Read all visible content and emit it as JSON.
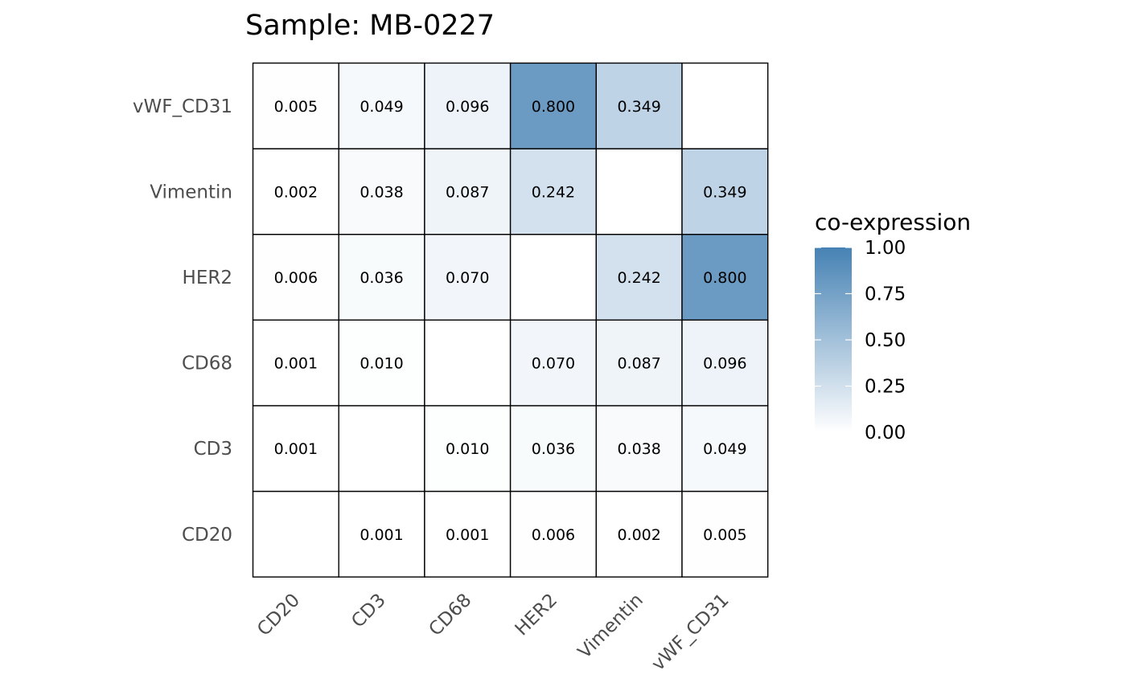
{
  "chart_data": {
    "type": "heatmap",
    "title": "Sample: MB-0227",
    "x_categories": [
      "CD20",
      "CD3",
      "CD68",
      "HER2",
      "Vimentin",
      "vWF_CD31"
    ],
    "y_categories": [
      "CD20",
      "CD3",
      "CD68",
      "HER2",
      "Vimentin",
      "vWF_CD31"
    ],
    "values": [
      [
        null,
        0.001,
        0.001,
        0.006,
        0.002,
        0.005
      ],
      [
        0.001,
        null,
        0.01,
        0.036,
        0.038,
        0.049
      ],
      [
        0.001,
        0.01,
        null,
        0.07,
        0.087,
        0.096
      ],
      [
        0.006,
        0.036,
        0.07,
        null,
        0.242,
        0.8
      ],
      [
        0.002,
        0.038,
        0.087,
        0.242,
        null,
        0.349
      ],
      [
        0.005,
        0.049,
        0.096,
        0.8,
        0.349,
        null
      ]
    ],
    "value_labels": [
      [
        "",
        "0.001",
        "0.001",
        "0.006",
        "0.002",
        "0.005"
      ],
      [
        "0.001",
        "",
        "0.010",
        "0.036",
        "0.038",
        "0.049"
      ],
      [
        "0.001",
        "0.010",
        "",
        "0.070",
        "0.087",
        "0.096"
      ],
      [
        "0.006",
        "0.036",
        "0.070",
        "",
        "0.242",
        "0.800"
      ],
      [
        "0.002",
        "0.038",
        "0.087",
        "0.242",
        "",
        "0.349"
      ],
      [
        "0.005",
        "0.049",
        "0.096",
        "0.800",
        "0.349",
        ""
      ]
    ],
    "legend": {
      "title": "co-expression",
      "ticks": [
        "1.00",
        "0.75",
        "0.50",
        "0.25",
        "0.00"
      ],
      "tick_values": [
        1.0,
        0.75,
        0.5,
        0.25,
        0.0
      ],
      "range": [
        0,
        1
      ],
      "placement": "right"
    },
    "colors": {
      "low": "#ffffff",
      "high": "#4682b4",
      "border": "#000000"
    },
    "grid": false
  }
}
